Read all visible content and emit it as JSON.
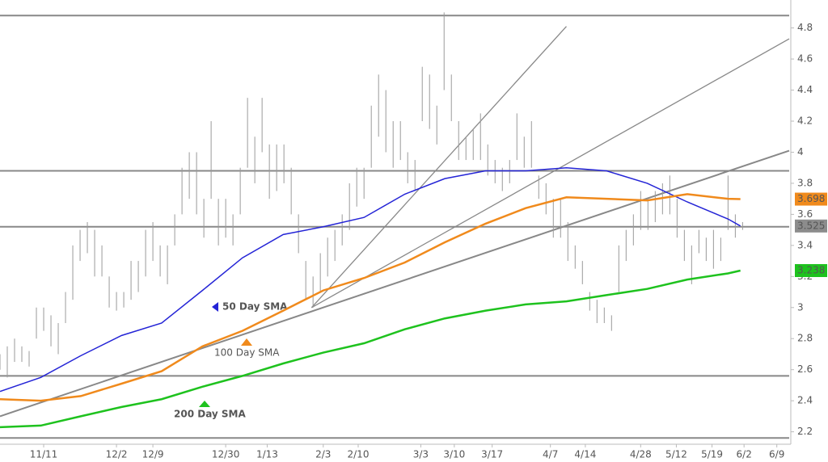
{
  "chart_data": {
    "type": "ohlc",
    "xlim": [
      0,
      108.4
    ],
    "ylim": [
      2.12,
      4.98
    ],
    "yticks": [
      2.2,
      2.4,
      2.6,
      2.8,
      3,
      3.2,
      3.4,
      3.6,
      3.8,
      4,
      4.2,
      4.4,
      4.6,
      4.8
    ],
    "xticks": [
      {
        "value": 6,
        "label": "11/11"
      },
      {
        "value": 16,
        "label": "12/2"
      },
      {
        "value": 21,
        "label": "12/9"
      },
      {
        "value": 31,
        "label": "12/30"
      },
      {
        "value": 36.7,
        "label": "1/13"
      },
      {
        "value": 44.4,
        "label": "2/3"
      },
      {
        "value": 49.2,
        "label": "2/10"
      },
      {
        "value": 57.8,
        "label": "3/3"
      },
      {
        "value": 62.4,
        "label": "3/10"
      },
      {
        "value": 67.6,
        "label": "3/17"
      },
      {
        "value": 75.6,
        "label": "4/7"
      },
      {
        "value": 80.4,
        "label": "4/14"
      },
      {
        "value": 88,
        "label": "4/28"
      },
      {
        "value": 92.9,
        "label": "5/12"
      },
      {
        "value": 97.8,
        "label": "5/19"
      },
      {
        "value": 102.2,
        "label": "6/2"
      },
      {
        "value": 106.7,
        "label": "6/9"
      }
    ],
    "bar_color": "#9a9a9a",
    "bars": {
      "x": [
        0,
        1,
        2,
        3,
        4,
        5,
        6,
        7,
        8,
        9,
        10,
        11,
        12,
        13,
        14,
        15,
        16,
        17,
        18,
        19,
        20,
        21,
        22,
        23,
        24,
        25,
        26,
        27,
        28,
        29,
        30,
        31,
        32,
        33,
        34,
        35,
        36,
        37,
        38,
        39,
        40,
        41,
        42,
        43,
        44,
        45,
        46,
        47,
        48,
        49,
        50,
        51,
        52,
        53,
        54,
        55,
        56,
        57,
        58,
        59,
        60,
        61,
        62,
        63,
        64,
        65,
        66,
        67,
        68,
        69,
        70,
        71,
        72,
        73,
        74,
        75,
        76,
        77,
        78,
        79,
        80,
        81,
        82,
        83,
        84,
        85,
        86,
        87,
        88,
        89,
        90,
        91,
        92,
        93,
        94,
        95,
        96,
        97,
        98,
        99,
        100,
        101,
        102
      ],
      "high": [
        2.7,
        2.75,
        2.8,
        2.75,
        2.72,
        3.0,
        3.0,
        2.95,
        2.9,
        3.1,
        3.4,
        3.5,
        3.55,
        3.5,
        3.4,
        3.2,
        3.1,
        3.1,
        3.3,
        3.3,
        3.5,
        3.55,
        3.4,
        3.4,
        3.6,
        3.9,
        4.0,
        4.0,
        3.7,
        4.2,
        3.7,
        3.7,
        3.6,
        3.9,
        4.35,
        4.1,
        4.35,
        4.05,
        4.05,
        4.05,
        3.9,
        3.6,
        3.3,
        3.2,
        3.35,
        3.45,
        3.5,
        3.6,
        3.8,
        3.9,
        3.9,
        4.3,
        4.5,
        4.4,
        4.2,
        4.2,
        4.0,
        3.95,
        4.55,
        4.5,
        4.3,
        4.9,
        4.5,
        4.2,
        4.1,
        4.15,
        4.25,
        4.05,
        3.95,
        3.9,
        3.95,
        4.25,
        4.1,
        4.2,
        3.85,
        3.8,
        3.7,
        3.7,
        3.55,
        3.4,
        3.3,
        3.1,
        3.05,
        3.0,
        2.95,
        3.4,
        3.5,
        3.6,
        3.75,
        3.7,
        3.75,
        3.8,
        3.85,
        3.7,
        3.5,
        3.4,
        3.5,
        3.45,
        3.5,
        3.45,
        3.85,
        3.6,
        3.55
      ],
      "low": [
        2.6,
        2.55,
        2.65,
        2.65,
        2.62,
        2.8,
        2.85,
        2.75,
        2.7,
        2.9,
        3.05,
        3.3,
        3.35,
        3.2,
        3.2,
        3.0,
        2.98,
        3.0,
        3.05,
        3.1,
        3.2,
        3.3,
        3.2,
        3.15,
        3.4,
        3.6,
        3.7,
        3.6,
        3.45,
        3.7,
        3.4,
        3.45,
        3.4,
        3.6,
        3.9,
        3.8,
        4.0,
        3.7,
        3.75,
        3.8,
        3.6,
        3.35,
        3.05,
        3.0,
        3.1,
        3.2,
        3.3,
        3.4,
        3.5,
        3.65,
        3.7,
        3.9,
        4.1,
        4.0,
        3.9,
        3.95,
        3.8,
        3.75,
        4.2,
        4.15,
        4.05,
        4.4,
        4.2,
        3.95,
        3.95,
        3.95,
        3.95,
        3.85,
        3.8,
        3.75,
        3.8,
        3.95,
        3.9,
        3.9,
        3.7,
        3.6,
        3.45,
        3.45,
        3.3,
        3.25,
        3.15,
        2.98,
        2.9,
        2.9,
        2.85,
        3.1,
        3.3,
        3.4,
        3.5,
        3.5,
        3.55,
        3.6,
        3.6,
        3.45,
        3.3,
        3.15,
        3.35,
        3.3,
        3.25,
        3.3,
        3.5,
        3.45,
        3.5
      ]
    },
    "series": [
      {
        "name": "50 Day SMA",
        "color": "#2424d6",
        "last_label": "3.525",
        "label_color": "#8c8c8c",
        "x": [
          0,
          5.6,
          11.1,
          16.7,
          22.2,
          27.8,
          33.3,
          38.9,
          44.4,
          50,
          55.6,
          61.1,
          66.7,
          72.2,
          77.8,
          83.3,
          88.9,
          94.4,
          100,
          101.7
        ],
        "values": [
          2.46,
          2.55,
          2.69,
          2.82,
          2.9,
          3.11,
          3.32,
          3.47,
          3.52,
          3.58,
          3.73,
          3.83,
          3.88,
          3.88,
          3.9,
          3.88,
          3.8,
          3.68,
          3.57,
          3.525
        ]
      },
      {
        "name": "100 Day SMA",
        "color": "#f08a1c",
        "last_label": "3.698",
        "label_color": "#f08a1c",
        "x": [
          0,
          5.6,
          11.1,
          16.7,
          22.2,
          27.8,
          33.3,
          38.9,
          44.4,
          50,
          55.6,
          61.1,
          66.7,
          72.2,
          77.8,
          83.3,
          88.9,
          94.4,
          100,
          101.7
        ],
        "values": [
          2.41,
          2.4,
          2.43,
          2.51,
          2.59,
          2.75,
          2.85,
          2.98,
          3.11,
          3.19,
          3.29,
          3.42,
          3.54,
          3.64,
          3.71,
          3.7,
          3.69,
          3.73,
          3.7,
          3.698
        ]
      },
      {
        "name": "200 Day SMA",
        "color": "#1ec21e",
        "last_label": "3.238",
        "label_color": "#1ec21e",
        "x": [
          0,
          5.6,
          11.1,
          16.7,
          22.2,
          27.8,
          33.3,
          38.9,
          44.4,
          50,
          55.6,
          61.1,
          66.7,
          72.2,
          77.8,
          83.3,
          88.9,
          94.4,
          100,
          101.7
        ],
        "values": [
          2.23,
          2.24,
          2.3,
          2.36,
          2.41,
          2.49,
          2.56,
          2.64,
          2.71,
          2.77,
          2.86,
          2.93,
          2.98,
          3.02,
          3.04,
          3.08,
          3.12,
          3.18,
          3.22,
          3.238
        ]
      }
    ],
    "hlines": [
      4.88,
      3.88,
      3.52,
      2.56,
      2.16
    ],
    "trendlines": [
      {
        "x": [
          42.8,
          77.8
        ],
        "values": [
          3.0,
          4.81
        ]
      },
      {
        "x": [
          42.8,
          108.4
        ],
        "values": [
          3.0,
          4.73
        ]
      },
      {
        "x": [
          0,
          108.4
        ],
        "values": [
          2.3,
          4.01
        ]
      }
    ]
  }
}
